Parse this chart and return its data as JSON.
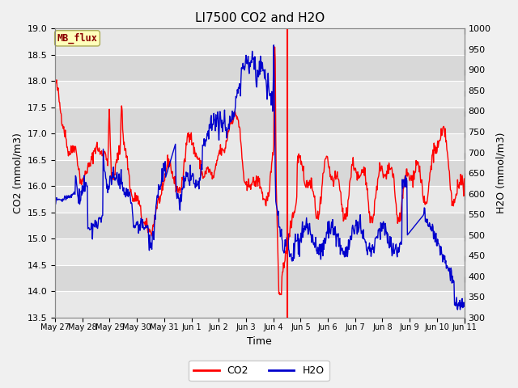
{
  "title": "LI7500 CO2 and H2O",
  "xlabel": "Time",
  "ylabel_left": "CO2 (mmol/m3)",
  "ylabel_right": "H2O (mmol/m3)",
  "ylim_left": [
    13.5,
    19.0
  ],
  "ylim_right": [
    300,
    1000
  ],
  "yticks_left": [
    13.5,
    14.0,
    14.5,
    15.0,
    15.5,
    16.0,
    16.5,
    17.0,
    17.5,
    18.0,
    18.5,
    19.0
  ],
  "yticks_right": [
    300,
    350,
    400,
    450,
    500,
    550,
    600,
    650,
    700,
    750,
    800,
    850,
    900,
    950,
    1000
  ],
  "annotation_text": "MB_flux",
  "annotation_color": "#8B0000",
  "annotation_bg": "#FFFFBB",
  "line_color_co2": "#FF0000",
  "line_color_h2o": "#0000CC",
  "background_color": "#DCDCDC",
  "band_color_dark": "#D0D0D0",
  "band_color_light": "#E8E8E8",
  "legend_labels": [
    "CO2",
    "H2O"
  ],
  "legend_colors": [
    "#FF0000",
    "#0000CC"
  ],
  "vline_date_idx": 0.535
}
